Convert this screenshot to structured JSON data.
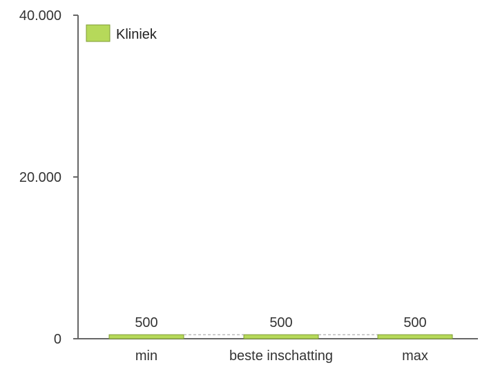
{
  "chart_data": {
    "type": "bar",
    "categories": [
      "min",
      "beste inschatting",
      "max"
    ],
    "series": [
      {
        "name": "Kliniek",
        "values": [
          500,
          500,
          500
        ]
      }
    ],
    "data_labels": [
      "500",
      "500",
      "500"
    ],
    "y_tick_labels": [
      "0",
      "20.000",
      "40.000"
    ],
    "y_tick_values": [
      0,
      20000,
      40000
    ],
    "ylim": [
      0,
      40000
    ],
    "legend_position": "top-left",
    "grid": false,
    "connector_lines": "dashed",
    "colors": {
      "bar_fill": "#b6d95a",
      "bar_stroke": "#7f9c34",
      "axis": "#666666",
      "connector": "#999999"
    }
  }
}
